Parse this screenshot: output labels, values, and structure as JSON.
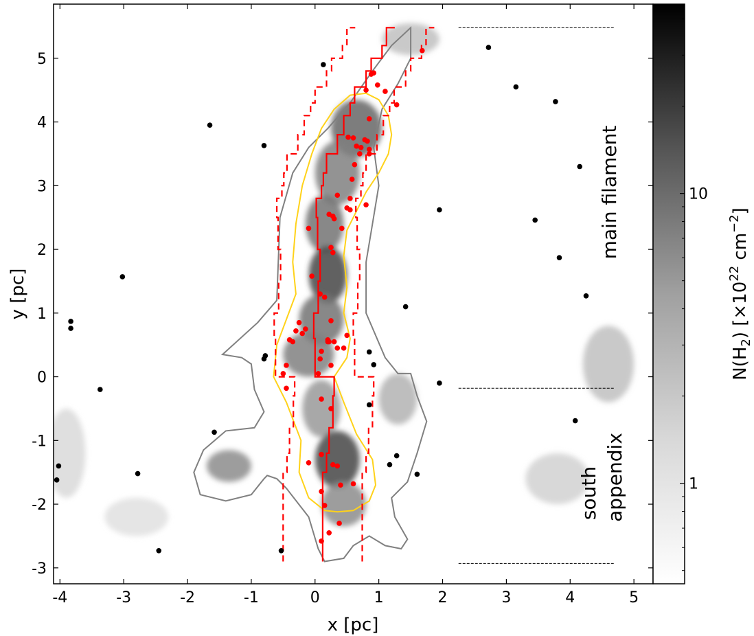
{
  "chart_data": {
    "type": "scatter",
    "title": "",
    "xlabel": "x [pc]",
    "ylabel": "y [pc]",
    "xlim": [
      -4.1,
      5.3
    ],
    "ylim": [
      -3.25,
      5.85
    ],
    "x_ticks": [
      "-4",
      "-3",
      "-2",
      "-1",
      "0",
      "1",
      "2",
      "3",
      "4",
      "5"
    ],
    "y_ticks": [
      "-3",
      "-2",
      "-1",
      "0",
      "1",
      "2",
      "3",
      "4",
      "5"
    ],
    "grid": false,
    "colorbar": {
      "label": "N(H$_2$) [×10$^{22}$ cm$^{-2}$]",
      "label_main": "N(H",
      "label_sub": "2",
      "label_mid": ") [×10",
      "label_sup": "22",
      "label_unit": " cm",
      "label_sup2": "−2",
      "label_end": "]",
      "scale": "log",
      "range": [
        0.45,
        45
      ],
      "ticks": [
        "1",
        "10"
      ],
      "colormap": "gray_r"
    },
    "annotations": {
      "main_filament": "main filament",
      "south": "south",
      "appendix": "appendix"
    },
    "region_dividers": [
      {
        "y": 5.48,
        "x_range": [
          2.25,
          4.7
        ]
      },
      {
        "y": -0.18,
        "x_range": [
          2.25,
          4.7
        ]
      },
      {
        "y": -2.93,
        "x_range": [
          2.25,
          4.7
        ]
      }
    ],
    "colors": {
      "crest": "#ff0000",
      "red_sources": "#ff0000",
      "black_sources": "#000000",
      "inner_contour": "#ffd21a",
      "outer_contour": "#808080"
    },
    "crest_line": {
      "x": [
        0.12,
        0.12,
        0.18,
        0.22,
        0.28,
        0.3,
        0.0,
        -0.02,
        0.05,
        0.08,
        0.04,
        0.02,
        0.1,
        0.13,
        0.18,
        0.35,
        0.45,
        0.55,
        0.62,
        0.8,
        0.88,
        1.05,
        1.12,
        1.25
      ],
      "y": [
        -2.9,
        -2.0,
        -1.5,
        -1.2,
        -0.8,
        -0.3,
        0.0,
        0.6,
        1.0,
        1.5,
        2.0,
        2.5,
        2.8,
        3.0,
        3.2,
        3.5,
        3.8,
        4.1,
        4.3,
        4.55,
        4.8,
        5.0,
        5.2,
        5.48
      ]
    },
    "dashed_offset_pc": 0.62,
    "yellow_contour": {
      "x": [
        0.15,
        -0.1,
        -0.25,
        -0.22,
        -0.45,
        -0.65,
        -0.6,
        -0.45,
        -0.3,
        -0.35,
        -0.3,
        -0.2,
        -0.05,
        0.1,
        0.3,
        0.55,
        0.8,
        1.0,
        1.15,
        1.2,
        1.15,
        1.0,
        0.8,
        0.65,
        0.5,
        0.45,
        0.5,
        0.45,
        0.55,
        0.5,
        0.3,
        0.45,
        0.65,
        0.9,
        0.95,
        0.85,
        0.6,
        0.35
      ],
      "y": [
        -2.1,
        -1.9,
        -1.5,
        -1.0,
        -0.4,
        0.0,
        0.5,
        0.9,
        1.3,
        1.8,
        2.4,
        3.0,
        3.5,
        3.9,
        4.2,
        4.42,
        4.45,
        4.35,
        4.1,
        3.8,
        3.5,
        3.2,
        2.9,
        2.6,
        2.3,
        1.9,
        1.4,
        1.0,
        0.6,
        0.3,
        0.0,
        -0.4,
        -0.9,
        -1.3,
        -1.7,
        -1.95,
        -2.1,
        -2.12
      ]
    },
    "gray_contour": {
      "x": [
        0.15,
        0.05,
        -0.1,
        -0.45,
        -0.6,
        -0.75,
        -0.8,
        -1.0,
        -1.4,
        -1.8,
        -1.9,
        -1.75,
        -1.4,
        -0.95,
        -0.8,
        -0.95,
        -1.0,
        -1.15,
        -1.45,
        -0.9,
        -0.6,
        -0.55,
        -0.35,
        -0.1,
        0.2,
        0.55,
        0.9,
        1.2,
        1.5,
        1.5,
        1.3,
        1.05,
        0.92,
        1.0,
        0.9,
        0.8,
        0.8,
        1.1,
        1.3,
        1.5,
        1.6,
        1.75,
        1.6,
        1.45,
        1.3,
        1.2,
        1.25,
        1.45,
        1.35,
        1.1,
        0.85,
        0.6,
        0.45
      ],
      "y": [
        -2.9,
        -2.7,
        -2.2,
        -1.75,
        -1.6,
        -1.55,
        -1.6,
        -1.85,
        -1.95,
        -1.85,
        -1.5,
        -1.15,
        -0.85,
        -0.8,
        -0.55,
        -0.2,
        0.2,
        0.3,
        0.35,
        0.85,
        1.2,
        2.5,
        3.2,
        3.6,
        3.9,
        4.3,
        4.8,
        5.2,
        5.48,
        5.0,
        4.6,
        4.2,
        3.6,
        3.0,
        2.4,
        1.8,
        1.0,
        0.3,
        0.05,
        0.05,
        -0.3,
        -0.7,
        -1.2,
        -1.65,
        -1.8,
        -1.9,
        -2.2,
        -2.55,
        -2.7,
        -2.65,
        -2.5,
        -2.65,
        -2.85
      ]
    },
    "series": [
      {
        "marker": "red-dot",
        "x": [
          1.68,
          0.88,
          0.92,
          0.98,
          1.1,
          0.8,
          1.28,
          0.85,
          0.6,
          0.78,
          0.82,
          0.52,
          0.65,
          0.72,
          0.85,
          0.7,
          0.85,
          0.62,
          0.58,
          0.55,
          0.5,
          0.35,
          0.28,
          0.3,
          0.22,
          0.55,
          0.8,
          0.42,
          -0.1,
          0.25,
          0.28,
          -0.05,
          0.08,
          0.15,
          -0.25,
          -0.15,
          -0.3,
          -0.2,
          -0.4,
          -0.35,
          0.25,
          0.2,
          0.3,
          0.5,
          0.1,
          0.2,
          0.35,
          0.22,
          0.45,
          -0.45,
          0.05,
          0.25,
          0.08,
          -0.5,
          -0.45,
          0.1,
          0.25,
          0.1,
          -0.1,
          0.28,
          0.35,
          0.6,
          0.1,
          0.4,
          0.15,
          0.38,
          0.22,
          0.1
        ],
        "y": [
          5.12,
          4.75,
          4.77,
          4.58,
          4.48,
          4.5,
          4.27,
          4.05,
          3.75,
          3.72,
          3.7,
          3.76,
          3.62,
          3.6,
          3.57,
          3.5,
          3.5,
          3.33,
          3.1,
          2.8,
          2.65,
          2.85,
          2.52,
          2.48,
          2.55,
          2.62,
          2.7,
          2.33,
          2.33,
          2.03,
          1.95,
          1.58,
          1.3,
          1.25,
          0.85,
          0.75,
          0.72,
          0.68,
          0.58,
          0.55,
          0.88,
          0.58,
          0.55,
          0.65,
          0.4,
          0.55,
          0.45,
          0.55,
          0.45,
          0.18,
          0.05,
          0.18,
          0.28,
          0.05,
          -0.18,
          -0.35,
          -0.5,
          -1.22,
          -1.35,
          -1.38,
          -1.4,
          -1.68,
          -1.8,
          -1.7,
          -2.02,
          -2.3,
          -2.45,
          -2.58
        ]
      },
      {
        "marker": "black-dot",
        "x": [
          0.13,
          2.72,
          3.15,
          3.77,
          -1.65,
          -0.8,
          4.15,
          1.95,
          3.45,
          3.83,
          -3.02,
          4.25,
          1.42,
          -3.83,
          -3.83,
          -0.78,
          -0.8,
          0.85,
          0.92,
          1.95,
          -3.37,
          0.85,
          4.08,
          -1.58,
          1.28,
          1.17,
          1.6,
          -4.02,
          -2.78,
          -4.05,
          -2.45,
          -0.53
        ],
        "y": [
          4.9,
          5.17,
          4.55,
          4.32,
          3.95,
          3.63,
          3.3,
          2.62,
          2.46,
          1.87,
          1.57,
          1.27,
          1.1,
          0.87,
          0.76,
          0.33,
          0.28,
          0.39,
          0.19,
          -0.1,
          -0.2,
          -0.44,
          -0.69,
          -0.87,
          -1.24,
          -1.38,
          -1.53,
          -1.4,
          -1.52,
          -1.62,
          -2.73,
          -2.73
        ]
      }
    ],
    "column_density_blobs": [
      {
        "x": 0.65,
        "y": 3.9,
        "sx": 0.4,
        "sy": 0.45,
        "level": 0.6
      },
      {
        "x": 0.35,
        "y": 3.2,
        "sx": 0.35,
        "sy": 0.5,
        "level": 0.5
      },
      {
        "x": 0.15,
        "y": 2.4,
        "sx": 0.3,
        "sy": 0.45,
        "level": 0.55
      },
      {
        "x": 0.2,
        "y": 1.6,
        "sx": 0.3,
        "sy": 0.45,
        "level": 0.72
      },
      {
        "x": 0.1,
        "y": 0.9,
        "sx": 0.35,
        "sy": 0.4,
        "level": 0.55
      },
      {
        "x": -0.1,
        "y": 0.35,
        "sx": 0.4,
        "sy": 0.35,
        "level": 0.5
      },
      {
        "x": 0.1,
        "y": -0.5,
        "sx": 0.3,
        "sy": 0.45,
        "level": 0.4
      },
      {
        "x": 0.35,
        "y": -1.3,
        "sx": 0.35,
        "sy": 0.45,
        "level": 0.72
      },
      {
        "x": 0.45,
        "y": -2.0,
        "sx": 0.35,
        "sy": 0.35,
        "level": 0.45
      },
      {
        "x": -1.35,
        "y": -1.4,
        "sx": 0.35,
        "sy": 0.25,
        "level": 0.45
      },
      {
        "x": 1.3,
        "y": -0.35,
        "sx": 0.3,
        "sy": 0.4,
        "level": 0.3
      },
      {
        "x": 1.5,
        "y": 5.3,
        "sx": 0.45,
        "sy": 0.25,
        "level": 0.25
      },
      {
        "x": 4.6,
        "y": 0.2,
        "sx": 0.4,
        "sy": 0.6,
        "level": 0.25
      },
      {
        "x": 3.8,
        "y": -1.6,
        "sx": 0.5,
        "sy": 0.4,
        "level": 0.18
      },
      {
        "x": -3.9,
        "y": -1.2,
        "sx": 0.3,
        "sy": 0.7,
        "level": 0.15
      },
      {
        "x": -2.8,
        "y": -2.2,
        "sx": 0.5,
        "sy": 0.3,
        "level": 0.12
      }
    ]
  }
}
